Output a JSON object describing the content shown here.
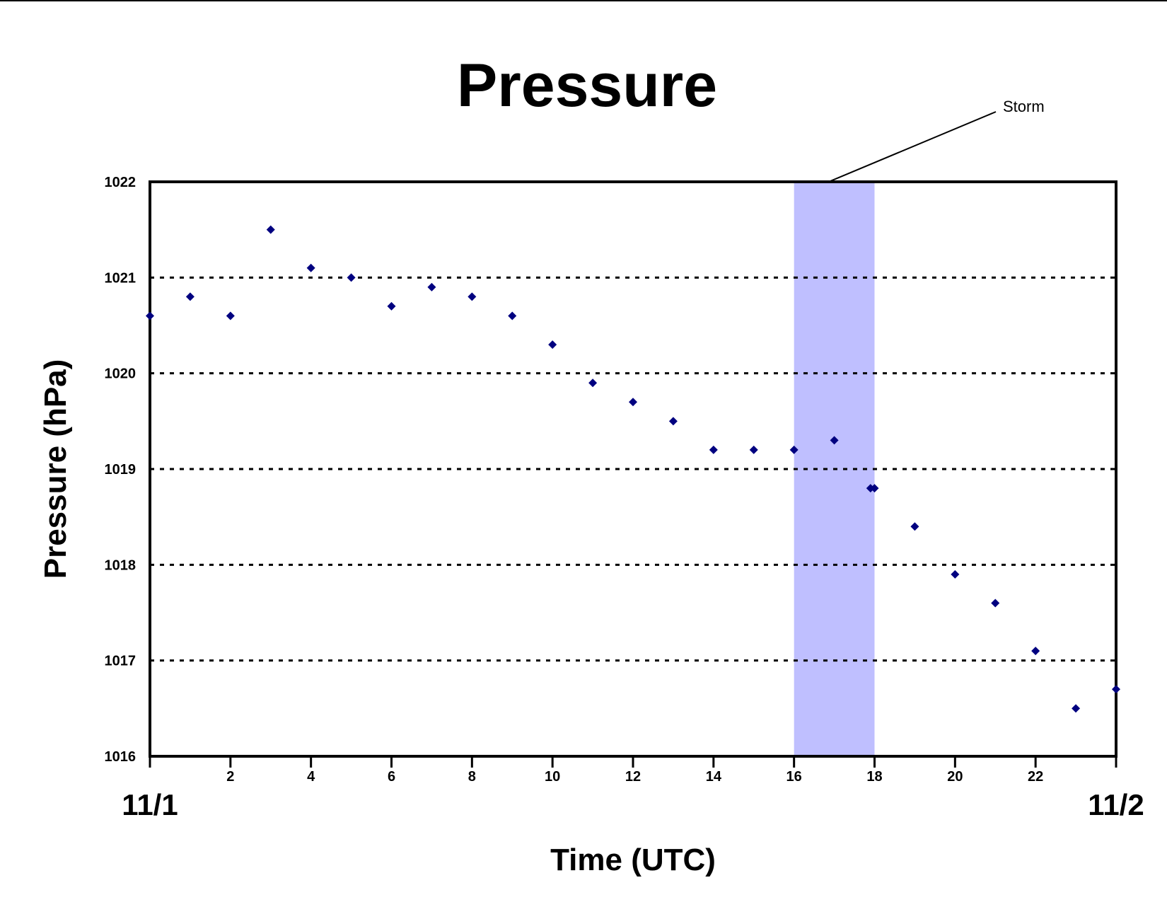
{
  "chart_data": {
    "type": "scatter",
    "title": "Pressure",
    "xlabel": "Time (UTC)",
    "ylabel": "Pressure (hPa)",
    "xlim": [
      0,
      24
    ],
    "ylim": [
      1016,
      1022
    ],
    "x_ticks": [
      0,
      2,
      4,
      6,
      8,
      10,
      12,
      14,
      16,
      18,
      20,
      22,
      24
    ],
    "x_tick_labels": [
      "",
      "2",
      "4",
      "6",
      "8",
      "10",
      "12",
      "14",
      "16",
      "18",
      "20",
      "22",
      ""
    ],
    "y_ticks": [
      1016,
      1017,
      1018,
      1019,
      1020,
      1021,
      1022
    ],
    "y_tick_labels": [
      "1016",
      "1017",
      "1018",
      "1019",
      "1020",
      "1021",
      "1022"
    ],
    "grid": "horizontal dotted",
    "date_labels": {
      "start": "11/1",
      "end": "11/2"
    },
    "series": [
      {
        "color": "#000080",
        "marker": "diamond",
        "points": [
          {
            "x": 0,
            "y": 1020.6
          },
          {
            "x": 1,
            "y": 1020.8
          },
          {
            "x": 2,
            "y": 1020.6
          },
          {
            "x": 3,
            "y": 1021.5
          },
          {
            "x": 4,
            "y": 1021.1
          },
          {
            "x": 5,
            "y": 1021.0
          },
          {
            "x": 6,
            "y": 1020.7
          },
          {
            "x": 7,
            "y": 1020.9
          },
          {
            "x": 8,
            "y": 1020.8
          },
          {
            "x": 9,
            "y": 1020.6
          },
          {
            "x": 10,
            "y": 1020.3
          },
          {
            "x": 11,
            "y": 1019.9
          },
          {
            "x": 12,
            "y": 1019.7
          },
          {
            "x": 13,
            "y": 1019.5
          },
          {
            "x": 14,
            "y": 1019.2
          },
          {
            "x": 15,
            "y": 1019.2
          },
          {
            "x": 16,
            "y": 1019.2
          },
          {
            "x": 17,
            "y": 1019.3
          },
          {
            "x": 17.9,
            "y": 1018.8
          },
          {
            "x": 18,
            "y": 1018.8
          },
          {
            "x": 19,
            "y": 1018.4
          },
          {
            "x": 20,
            "y": 1017.9
          },
          {
            "x": 21,
            "y": 1017.6
          },
          {
            "x": 22,
            "y": 1017.1
          },
          {
            "x": 23,
            "y": 1016.5
          },
          {
            "x": 24,
            "y": 1016.7
          }
        ]
      }
    ],
    "highlight_band": {
      "x_start": 16,
      "x_end": 18,
      "color": "#bfbfff"
    },
    "annotation": {
      "text": "Storm"
    }
  }
}
